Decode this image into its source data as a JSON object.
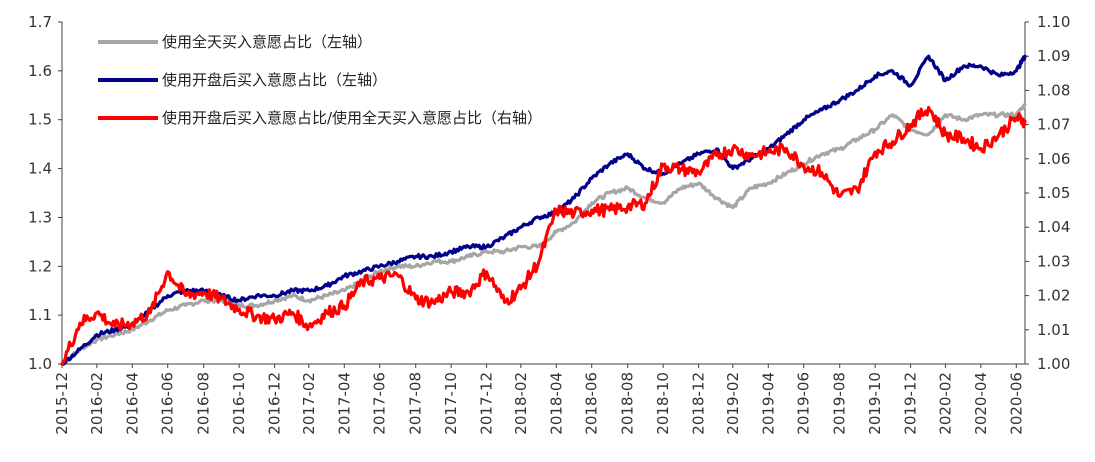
{
  "chart_data": {
    "type": "line",
    "title": "",
    "xlabel": "",
    "ylabel": "",
    "y2label": "",
    "ylim": [
      1.0,
      1.7
    ],
    "y2lim": [
      1.0,
      1.1
    ],
    "yticks": [
      "1.0",
      "1.1",
      "1.2",
      "1.3",
      "1.4",
      "1.5",
      "1.6",
      "1.7"
    ],
    "y2ticks": [
      "1.00",
      "1.01",
      "1.02",
      "1.03",
      "1.04",
      "1.05",
      "1.06",
      "1.07",
      "1.08",
      "1.09",
      "1.10"
    ],
    "xticks": [
      "2015-12",
      "2016-02",
      "2016-04",
      "2016-06",
      "2016-08",
      "2016-10",
      "2016-12",
      "2017-02",
      "2017-04",
      "2017-06",
      "2017-08",
      "2017-10",
      "2017-12",
      "2018-02",
      "2018-04",
      "2018-06",
      "2018-08",
      "2018-10",
      "2018-12",
      "2019-02",
      "2019-04",
      "2019-06",
      "2019-08",
      "2019-10",
      "2019-12",
      "2020-02",
      "2020-04",
      "2020-06"
    ],
    "grid": false,
    "legend_position": "top-left",
    "x": [
      "2015-12-31",
      "2016-01-31",
      "2016-02-29",
      "2016-03-31",
      "2016-04-30",
      "2016-05-31",
      "2016-06-30",
      "2016-07-31",
      "2016-08-31",
      "2016-09-30",
      "2016-10-31",
      "2016-11-30",
      "2016-12-31",
      "2017-01-31",
      "2017-02-28",
      "2017-03-31",
      "2017-04-30",
      "2017-05-31",
      "2017-06-30",
      "2017-07-31",
      "2017-08-31",
      "2017-09-30",
      "2017-10-31",
      "2017-11-30",
      "2017-12-31",
      "2018-01-31",
      "2018-02-28",
      "2018-03-31",
      "2018-04-30",
      "2018-05-31",
      "2018-06-30",
      "2018-07-31",
      "2018-08-31",
      "2018-09-30",
      "2018-10-31",
      "2018-11-30",
      "2018-12-31",
      "2019-01-31",
      "2019-02-28",
      "2019-03-31",
      "2019-04-30",
      "2019-05-31",
      "2019-06-30",
      "2019-07-31",
      "2019-08-31",
      "2019-09-30",
      "2019-10-31",
      "2019-11-30",
      "2019-12-31",
      "2020-01-31",
      "2020-02-29",
      "2020-03-31",
      "2020-04-30",
      "2020-05-31",
      "2020-06-30",
      "2020-07-15"
    ],
    "series": [
      {
        "name": "使用全天买入意愿占比（左轴）",
        "axis": "left",
        "color": "#a6a6a6",
        "values": [
          1.0,
          1.03,
          1.05,
          1.06,
          1.07,
          1.09,
          1.11,
          1.12,
          1.13,
          1.13,
          1.12,
          1.12,
          1.13,
          1.14,
          1.13,
          1.14,
          1.15,
          1.17,
          1.19,
          1.2,
          1.2,
          1.21,
          1.21,
          1.22,
          1.23,
          1.23,
          1.24,
          1.24,
          1.27,
          1.29,
          1.33,
          1.35,
          1.36,
          1.34,
          1.33,
          1.36,
          1.37,
          1.34,
          1.32,
          1.36,
          1.37,
          1.39,
          1.41,
          1.43,
          1.44,
          1.46,
          1.48,
          1.51,
          1.48,
          1.47,
          1.51,
          1.5,
          1.51,
          1.51,
          1.51,
          1.53
        ]
      },
      {
        "name": "使用开盘后买入意愿占比（左轴）",
        "axis": "left",
        "color": "#00008b",
        "values": [
          1.0,
          1.03,
          1.06,
          1.07,
          1.08,
          1.11,
          1.14,
          1.15,
          1.15,
          1.14,
          1.13,
          1.14,
          1.14,
          1.15,
          1.15,
          1.16,
          1.18,
          1.19,
          1.2,
          1.21,
          1.22,
          1.22,
          1.23,
          1.24,
          1.24,
          1.26,
          1.28,
          1.3,
          1.31,
          1.34,
          1.38,
          1.41,
          1.43,
          1.4,
          1.39,
          1.41,
          1.43,
          1.44,
          1.4,
          1.42,
          1.44,
          1.47,
          1.5,
          1.52,
          1.54,
          1.56,
          1.59,
          1.6,
          1.57,
          1.63,
          1.58,
          1.61,
          1.61,
          1.59,
          1.6,
          1.63
        ]
      },
      {
        "name": "使用开盘后买入意愿占比/使用全天买入意愿占比（右轴）",
        "axis": "right",
        "color": "#ff0000",
        "values": [
          1.0,
          1.012,
          1.015,
          1.011,
          1.012,
          1.015,
          1.027,
          1.02,
          1.021,
          1.019,
          1.016,
          1.014,
          1.013,
          1.015,
          1.011,
          1.015,
          1.017,
          1.024,
          1.025,
          1.026,
          1.019,
          1.018,
          1.021,
          1.021,
          1.027,
          1.018,
          1.022,
          1.03,
          1.045,
          1.044,
          1.045,
          1.045,
          1.046,
          1.047,
          1.058,
          1.057,
          1.056,
          1.061,
          1.063,
          1.061,
          1.062,
          1.063,
          1.058,
          1.056,
          1.049,
          1.051,
          1.062,
          1.065,
          1.07,
          1.075,
          1.067,
          1.066,
          1.063,
          1.067,
          1.072,
          1.071
        ]
      }
    ]
  }
}
